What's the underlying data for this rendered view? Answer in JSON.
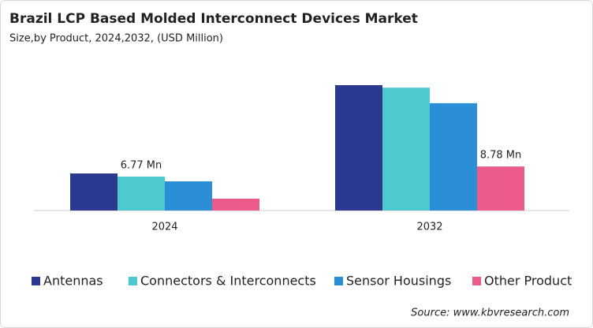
{
  "chart_data": {
    "type": "bar",
    "title": "Brazil LCP Based Molded Interconnect Devices Market",
    "subtitle": "Size,by Product, 2024,2032, (USD Million)",
    "categories": [
      "2024",
      "2032"
    ],
    "series": [
      {
        "name": "Antennas",
        "color": "#2b3990",
        "values": [
          7.39,
          25.0
        ]
      },
      {
        "name": "Connectors & Interconnects",
        "color": "#4ec9d0",
        "values": [
          6.77,
          24.5
        ],
        "value_labels": [
          "6.77 Mn",
          null
        ]
      },
      {
        "name": "Sensor Housings",
        "color": "#2a8fd6",
        "values": [
          5.82,
          21.4
        ]
      },
      {
        "name": "Other Product",
        "color": "#ec5a89",
        "values": [
          2.36,
          8.78
        ],
        "value_labels": [
          null,
          "8.78 Mn"
        ]
      }
    ],
    "source": "Source: www.kbvresearch.com"
  }
}
